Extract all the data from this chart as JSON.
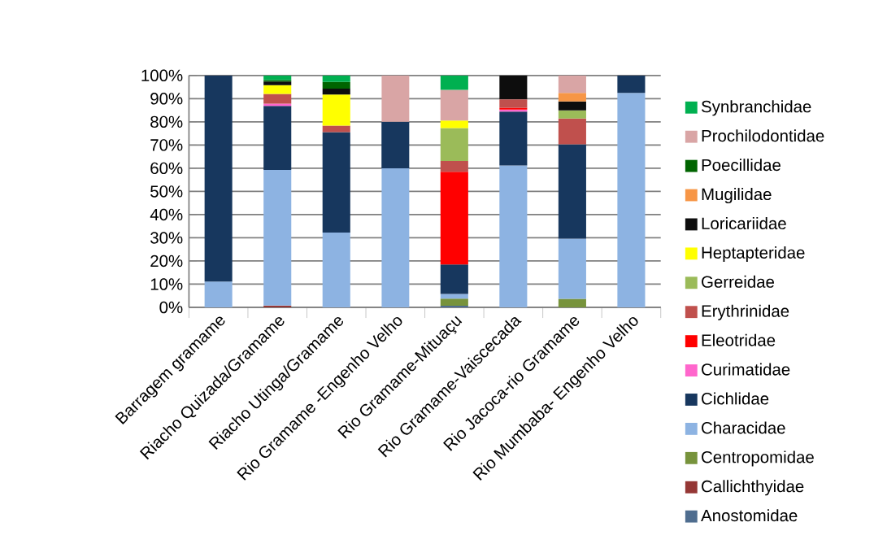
{
  "chart_data": {
    "type": "bar",
    "stacked": true,
    "categories": [
      "Barragem gramame",
      "Riacho Quizada/Gramame",
      "Riacho Utinga/Gramame",
      "Rio Gramame -Engenho Velho",
      "Rio Gramame-Mituaçu",
      "Rio Gramame-Vaiscecada",
      "Rio Jacoca-rio Gramame",
      "Rio Mumbaba- Engenho Velho"
    ],
    "series": [
      {
        "name": "Anostomidae",
        "color": "#4f6d8f",
        "values": [
          null,
          null,
          null,
          null,
          0.7,
          null,
          null,
          null
        ]
      },
      {
        "name": "Callichthyidae",
        "color": "#953735",
        "values": [
          null,
          0.8,
          null,
          null,
          null,
          null,
          null,
          null
        ]
      },
      {
        "name": "Centropomidae",
        "color": "#77933c",
        "values": [
          null,
          null,
          null,
          null,
          3.1,
          null,
          3.7,
          null
        ]
      },
      {
        "name": "Characidae",
        "color": "#8db3e2",
        "values": [
          11.1,
          58.5,
          32.3,
          60,
          2,
          61.2,
          25.9,
          92.5
        ]
      },
      {
        "name": "Cichlidae",
        "color": "#17375e",
        "values": [
          88.9,
          27.6,
          43.3,
          20,
          12.7,
          23.2,
          40.7,
          7.5
        ]
      },
      {
        "name": "Curimatidae",
        "color": "#ff66cc",
        "values": [
          null,
          0.9,
          null,
          null,
          null,
          0.9,
          null,
          null
        ]
      },
      {
        "name": "Eleotridae",
        "color": "#ff0000",
        "values": [
          null,
          null,
          null,
          null,
          40,
          0.8,
          null,
          null
        ]
      },
      {
        "name": "Erythrinidae",
        "color": "#c0504d",
        "values": [
          null,
          4.2,
          2.8,
          null,
          4.6,
          3.6,
          11.1,
          null
        ]
      },
      {
        "name": "Gerreidae",
        "color": "#9bbb59",
        "values": [
          null,
          null,
          null,
          null,
          14.2,
          null,
          3.5,
          null
        ]
      },
      {
        "name": "Heptapteridae",
        "color": "#ffff00",
        "values": [
          null,
          3.8,
          13.4,
          null,
          3.3,
          null,
          null,
          null
        ]
      },
      {
        "name": "Loricariidae",
        "color": "#0d0d0d",
        "values": [
          null,
          1.6,
          2.5,
          null,
          null,
          10.3,
          3.9,
          null
        ]
      },
      {
        "name": "Mugilidae",
        "color": "#f79646",
        "values": [
          null,
          null,
          null,
          null,
          null,
          null,
          3.7,
          null
        ]
      },
      {
        "name": "Poecillidae",
        "color": "#006400",
        "values": [
          null,
          0.6,
          2.9,
          null,
          null,
          null,
          null,
          null
        ]
      },
      {
        "name": "Prochilodontidae",
        "color": "#d9a5a5",
        "values": [
          null,
          null,
          null,
          20,
          13.2,
          null,
          7.5,
          null
        ]
      },
      {
        "name": "Synbranchidae",
        "color": "#00b050",
        "values": [
          null,
          2,
          2.8,
          null,
          6.2,
          null,
          null,
          null
        ]
      }
    ],
    "ylim": [
      0,
      100
    ],
    "yticks": [
      {
        "value": 0,
        "label": "0%"
      },
      {
        "value": 10,
        "label": "10%"
      },
      {
        "value": 20,
        "label": "20%"
      },
      {
        "value": 30,
        "label": "30%"
      },
      {
        "value": 40,
        "label": "40%"
      },
      {
        "value": 50,
        "label": "50%"
      },
      {
        "value": 60,
        "label": "60%"
      },
      {
        "value": 70,
        "label": "70%"
      },
      {
        "value": 80,
        "label": "80%"
      },
      {
        "value": 90,
        "label": "90%"
      },
      {
        "value": 100,
        "label": "100%"
      }
    ],
    "grid": "y",
    "legend": "right"
  }
}
